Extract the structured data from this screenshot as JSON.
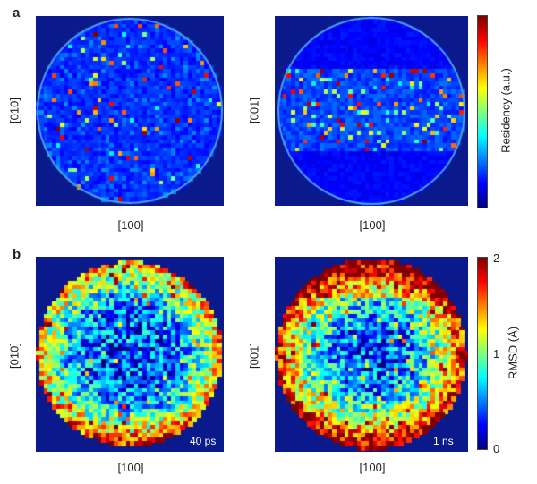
{
  "chart_data": [
    {
      "type": "heatmap",
      "panel": "a",
      "plane": "010",
      "xlabel": "[100]",
      "ylabel": "[010]",
      "colorbar_label": "Residency (a.u.)",
      "pattern": "sparse-scattered",
      "boundary": "circle",
      "colormap": "jet"
    },
    {
      "type": "heatmap",
      "panel": "a",
      "plane": "001",
      "xlabel": "[100]",
      "ylabel": "[001]",
      "colorbar_label": "Residency (a.u.)",
      "pattern": "sparse-band",
      "boundary": "circle",
      "colormap": "jet"
    },
    {
      "type": "heatmap",
      "panel": "b",
      "plane": "010",
      "xlabel": "[100]",
      "ylabel": "[010]",
      "annotation": "40 ps",
      "colorbar_label": "RMSD (Å)",
      "colorbar_range": [
        0,
        2
      ],
      "colorbar_ticks": [
        "0",
        "1",
        "2"
      ],
      "pattern": "dense-rim",
      "colormap": "jet"
    },
    {
      "type": "heatmap",
      "panel": "b",
      "plane": "001",
      "xlabel": "[100]",
      "ylabel": "[001]",
      "annotation": "1 ns",
      "colorbar_label": "RMSD (Å)",
      "colorbar_range": [
        0,
        2
      ],
      "colorbar_ticks": [
        "0",
        "1",
        "2"
      ],
      "pattern": "dense-rim-strong",
      "colormap": "jet"
    }
  ],
  "labels": {
    "panel_a": "a",
    "panel_b": "b",
    "a_left_x": "[100]",
    "a_left_y": "[010]",
    "a_right_x": "[100]",
    "a_right_y": "[001]",
    "b_left_x": "[100]",
    "b_left_y": "[010]",
    "b_right_x": "[100]",
    "b_right_y": "[001]",
    "cbar_a_label": "Residency (a.u.)",
    "cbar_b_label": "RMSD (Å)",
    "cbar_b_tick_0": "0",
    "cbar_b_tick_1": "1",
    "cbar_b_tick_2": "2",
    "time_b_left": "40 ps",
    "time_b_right": "1 ns"
  },
  "colors": {
    "background_map": "#0a1a8c",
    "circle": "#4aa0e6"
  }
}
